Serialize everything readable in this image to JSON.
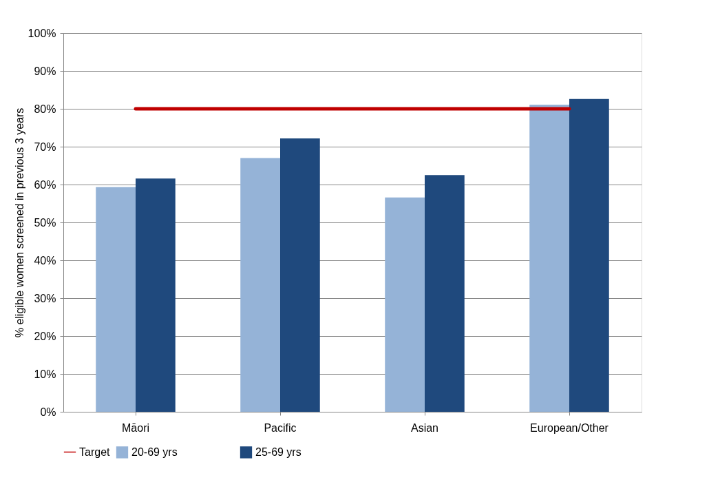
{
  "chart_data": {
    "type": "bar",
    "ylabel": "% eligible women screened in previous 3 years",
    "categories": [
      "Māori",
      "Pacific",
      "Asian",
      "European/Other"
    ],
    "series": [
      {
        "name": "20-69 yrs",
        "color": "#95b3d7",
        "values": [
          59.3,
          67.0,
          56.6,
          81.1
        ]
      },
      {
        "name": "25-69 yrs",
        "color": "#1f497d",
        "values": [
          61.6,
          72.2,
          62.5,
          82.6
        ]
      },
      {
        "name": "Target",
        "type": "line",
        "color": "#c00000",
        "values": [
          80,
          80,
          80,
          80
        ]
      }
    ],
    "ylim": [
      0,
      100
    ],
    "yticks": [
      {
        "value": 0,
        "label": "0%"
      },
      {
        "value": 10,
        "label": "10%"
      },
      {
        "value": 20,
        "label": "20%"
      },
      {
        "value": 30,
        "label": "30%"
      },
      {
        "value": 40,
        "label": "40%"
      },
      {
        "value": 50,
        "label": "50%"
      },
      {
        "value": 60,
        "label": "60%"
      },
      {
        "value": 70,
        "label": "70%"
      },
      {
        "value": 80,
        "label": "80%"
      },
      {
        "value": 90,
        "label": "90%"
      },
      {
        "value": 100,
        "label": "100%"
      }
    ],
    "grid": "y",
    "legend": "bottom"
  }
}
